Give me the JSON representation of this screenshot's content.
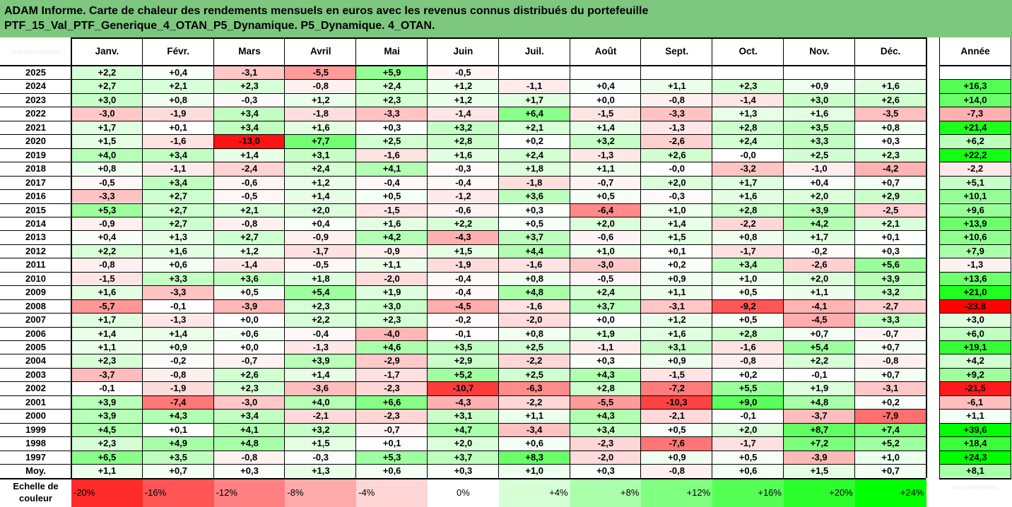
{
  "title_line1": "ADAM Informe. Carte de chaleur des rendements mensuels en euros avec les revenus connus distribués du portefeuille",
  "title_line2": "PTF_15_Val_PTF_Generique_4_OTAN_P5_Dynamique. P5_Dynamique. 4_OTAN.",
  "corner_watermark": "Grandportefeuille",
  "bottom_watermark": "des portefeuilles",
  "avg_label": "Moy.",
  "scale_label": "Echelle de couleur",
  "colors": {
    "title_bg": "#7dc77f",
    "negative_max": "#ff0000",
    "positive_max": "#00ff00",
    "neutral": "#ffffff"
  },
  "chart_data": {
    "type": "heatmap",
    "months": [
      "Janv.",
      "Févr.",
      "Mars",
      "Avril",
      "Mai",
      "Juin",
      "Juil.",
      "Août",
      "Sept.",
      "Oct.",
      "Nov.",
      "Déc."
    ],
    "year_header": "Année",
    "rows": [
      {
        "year": "2025",
        "m": [
          "+2,2",
          "+0,4",
          "-3,1",
          "-5,5",
          "+5,9",
          "-0,5",
          "",
          "",
          "",
          "",
          "",
          ""
        ],
        "y": ""
      },
      {
        "year": "2024",
        "m": [
          "+2,7",
          "+2,1",
          "+2,3",
          "-0,8",
          "+2,4",
          "+1,2",
          "-1,1",
          "+0,4",
          "+1,1",
          "+2,3",
          "+0,9",
          "+1,6"
        ],
        "y": "+16,3"
      },
      {
        "year": "2023",
        "m": [
          "+3,0",
          "+0,8",
          "-0,3",
          "+1,2",
          "+2,3",
          "+1,2",
          "+1,7",
          "+0,0",
          "-0,8",
          "-1,4",
          "+3,0",
          "+2,6"
        ],
        "y": "+14,0"
      },
      {
        "year": "2022",
        "m": [
          "-3,0",
          "-1,9",
          "+3,4",
          "-1,8",
          "-3,3",
          "-1,4",
          "+6,4",
          "-1,5",
          "-3,3",
          "+1,3",
          "+1,6",
          "-3,5"
        ],
        "y": "-7,3"
      },
      {
        "year": "2021",
        "m": [
          "+1,7",
          "+0,1",
          "+3,4",
          "+1,6",
          "+0,3",
          "+3,2",
          "+2,1",
          "+1,4",
          "-1,3",
          "+2,8",
          "+3,5",
          "+0,8"
        ],
        "y": "+21,4"
      },
      {
        "year": "2020",
        "m": [
          "+1,5",
          "-1,6",
          "-13,0",
          "+7,7",
          "+2,5",
          "+2,8",
          "+0,2",
          "+3,2",
          "-2,6",
          "+2,4",
          "+3,3",
          "+0,3"
        ],
        "y": "+6,2"
      },
      {
        "year": "2019",
        "m": [
          "+4,0",
          "+3,4",
          "+1,4",
          "+3,1",
          "-1,6",
          "+1,6",
          "+2,4",
          "-1,3",
          "+2,6",
          "-0,0",
          "+2,5",
          "+2,3"
        ],
        "y": "+22,2"
      },
      {
        "year": "2018",
        "m": [
          "+0,8",
          "-1,1",
          "-2,4",
          "+2,4",
          "+4,1",
          "-0,3",
          "+1,8",
          "+1,1",
          "-0,0",
          "-3,2",
          "-1,0",
          "-4,2"
        ],
        "y": "-2,2"
      },
      {
        "year": "2017",
        "m": [
          "-0,5",
          "+3,4",
          "-0,6",
          "+1,2",
          "-0,4",
          "-0,4",
          "-1,8",
          "-0,7",
          "+2,0",
          "+1,7",
          "+0,4",
          "+0,7"
        ],
        "y": "+5,1"
      },
      {
        "year": "2016",
        "m": [
          "-3,3",
          "+2,7",
          "-0,5",
          "+1,4",
          "+0,5",
          "-1,2",
          "+3,6",
          "+0,5",
          "-0,3",
          "+1,6",
          "+2,0",
          "+2,9"
        ],
        "y": "+10,1"
      },
      {
        "year": "2015",
        "m": [
          "+5,3",
          "+2,7",
          "+2,1",
          "+2,0",
          "-1,5",
          "-0,6",
          "+0,3",
          "-6,4",
          "+1,0",
          "+2,8",
          "+3,9",
          "-2,5"
        ],
        "y": "+9,6"
      },
      {
        "year": "2014",
        "m": [
          "-0,9",
          "+2,7",
          "-0,8",
          "+0,4",
          "+1,6",
          "+2,2",
          "+0,5",
          "+2,0",
          "+1,4",
          "-2,2",
          "+4,2",
          "+2,1"
        ],
        "y": "+13,9"
      },
      {
        "year": "2013",
        "m": [
          "+0,4",
          "+1,3",
          "+2,7",
          "-0,9",
          "+4,2",
          "-4,3",
          "+3,7",
          "-0,6",
          "+1,5",
          "+0,8",
          "+1,7",
          "+0,1"
        ],
        "y": "+10,6"
      },
      {
        "year": "2012",
        "m": [
          "+2,2",
          "+1,6",
          "+1,2",
          "-1,7",
          "-0,9",
          "+1,5",
          "+4,4",
          "+1,0",
          "+0,1",
          "-1,7",
          "-0,2",
          "+0,3"
        ],
        "y": "+7,9"
      },
      {
        "year": "2011",
        "m": [
          "-0,8",
          "+0,6",
          "-1,4",
          "-0,5",
          "+1,1",
          "-1,9",
          "-1,6",
          "-3,0",
          "+0,2",
          "+3,4",
          "-2,6",
          "+5,6"
        ],
        "y": "-1,3"
      },
      {
        "year": "2010",
        "m": [
          "-1,5",
          "+3,3",
          "+3,6",
          "+1,8",
          "-2,0",
          "-0,4",
          "+0,8",
          "-0,5",
          "+0,9",
          "+1,0",
          "+2,0",
          "+3,9"
        ],
        "y": "+13,6"
      },
      {
        "year": "2009",
        "m": [
          "+1,6",
          "-3,3",
          "+0,5",
          "+5,4",
          "+1,9",
          "-0,4",
          "+4,8",
          "+2,4",
          "+1,1",
          "+0,5",
          "+1,1",
          "+3,2"
        ],
        "y": "+21,0"
      },
      {
        "year": "2008",
        "m": [
          "-5,7",
          "-0,1",
          "-3,9",
          "+2,3",
          "+3,0",
          "-4,5",
          "-1,6",
          "+3,7",
          "-3,1",
          "-9,2",
          "-4,1",
          "-2,7"
        ],
        "y": "-23,8"
      },
      {
        "year": "2007",
        "m": [
          "+1,7",
          "-1,3",
          "+0,0",
          "+2,2",
          "+2,3",
          "-0,2",
          "-2,0",
          "+0,0",
          "+1,2",
          "+0,5",
          "-4,5",
          "+3,3"
        ],
        "y": "+3,0"
      },
      {
        "year": "2006",
        "m": [
          "+1,4",
          "+1,4",
          "+0,6",
          "-0,4",
          "-4,0",
          "-0,1",
          "+0,8",
          "+1,9",
          "+1,6",
          "+2,8",
          "+0,7",
          "-0,7"
        ],
        "y": "+6,0"
      },
      {
        "year": "2005",
        "m": [
          "+1,1",
          "+0,9",
          "+0,0",
          "-1,3",
          "+4,6",
          "+3,5",
          "+2,5",
          "-1,1",
          "+3,1",
          "-1,6",
          "+5,4",
          "+0,7"
        ],
        "y": "+19,1"
      },
      {
        "year": "2004",
        "m": [
          "+2,3",
          "-0,2",
          "-0,7",
          "+3,9",
          "-2,9",
          "+2,9",
          "-2,2",
          "+0,3",
          "+0,9",
          "-0,8",
          "+2,2",
          "-0,8"
        ],
        "y": "+4,2"
      },
      {
        "year": "2003",
        "m": [
          "-3,7",
          "-0,8",
          "+2,6",
          "+1,4",
          "-1,7",
          "+5,2",
          "+2,5",
          "+4,3",
          "-1,5",
          "+0,2",
          "-0,1",
          "+0,7"
        ],
        "y": "+9,2"
      },
      {
        "year": "2002",
        "m": [
          "-0,1",
          "-1,9",
          "+2,3",
          "-3,6",
          "-2,3",
          "-10,7",
          "-6,3",
          "+2,8",
          "-7,2",
          "+5,5",
          "+1,9",
          "-3,1"
        ],
        "y": "-21,5"
      },
      {
        "year": "2001",
        "m": [
          "+3,9",
          "-7,4",
          "-3,0",
          "+4,0",
          "+6,6",
          "-4,3",
          "-2,2",
          "-5,5",
          "-10,3",
          "+9,0",
          "+4,8",
          "+0,2"
        ],
        "y": "-6,1"
      },
      {
        "year": "2000",
        "m": [
          "+3,9",
          "+4,3",
          "+3,4",
          "-2,1",
          "-2,3",
          "+3,1",
          "+1,1",
          "+4,3",
          "-2,1",
          "-0,1",
          "-3,7",
          "-7,9"
        ],
        "y": "+1,1"
      },
      {
        "year": "1999",
        "m": [
          "+4,5",
          "+0,1",
          "+4,1",
          "+3,2",
          "-0,7",
          "+4,7",
          "-3,4",
          "+3,4",
          "+0,5",
          "+2,0",
          "+8,7",
          "+7,4"
        ],
        "y": "+39,6"
      },
      {
        "year": "1998",
        "m": [
          "+2,3",
          "+4,9",
          "+4,8",
          "+1,5",
          "+0,1",
          "+2,0",
          "+0,6",
          "-2,3",
          "-7,6",
          "-1,7",
          "+7,2",
          "+5,2"
        ],
        "y": "+18,4"
      },
      {
        "year": "1997",
        "m": [
          "+6,5",
          "+3,5",
          "-0,8",
          "-0,3",
          "+5,3",
          "+3,7",
          "+8,3",
          "-2,0",
          "+0,9",
          "+0,5",
          "-3,9",
          "+1,0"
        ],
        "y": "+24,3"
      }
    ],
    "averages": [
      "+1,1",
      "+0,7",
      "+0,3",
      "+1,3",
      "+0,6",
      "+0,3",
      "+1,0",
      "+0,3",
      "-0,8",
      "+0,6",
      "+1,5",
      "+0,7"
    ],
    "average_year": "+8,1",
    "scale": [
      "-20%",
      "-16%",
      "-12%",
      "-8%",
      "-4%",
      "0%",
      "+4%",
      "+8%",
      "+12%",
      "+16%",
      "+20%",
      "+24%"
    ]
  }
}
